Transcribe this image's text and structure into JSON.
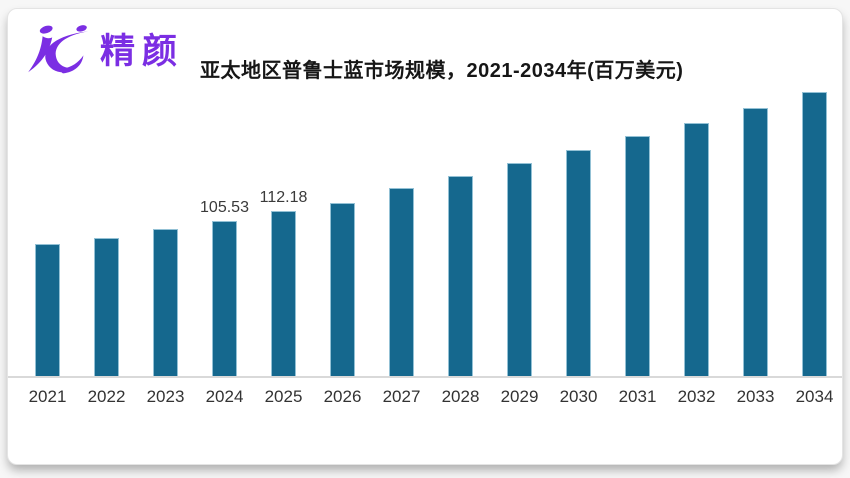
{
  "logo": {
    "text": "精颜",
    "color": "#7B2EE3",
    "mark_icon": "jc-dancer-mark"
  },
  "chart_data": {
    "type": "bar",
    "title": "亚太地区普鲁士蓝市场规模，2021-2034年(百万美元)",
    "categories": [
      "2021",
      "2022",
      "2023",
      "2024",
      "2025",
      "2026",
      "2027",
      "2028",
      "2029",
      "2030",
      "2031",
      "2032",
      "2033",
      "2034"
    ],
    "values": [
      90.0,
      94.1,
      100.1,
      105.53,
      112.18,
      117.8,
      127.9,
      136.0,
      144.8,
      153.6,
      163.0,
      171.9,
      182.0,
      192.8
    ],
    "data_labels": {
      "2024": "105.53",
      "2025": "112.18"
    },
    "xlabel": "",
    "ylabel": "",
    "unit": "百万美元",
    "ylim": [
      0,
      200
    ],
    "grid": false,
    "legend": false,
    "bar_color": "#15688E",
    "bar_edge_color": "#93C1D5",
    "axis_line_color": "#D9D9D9"
  }
}
